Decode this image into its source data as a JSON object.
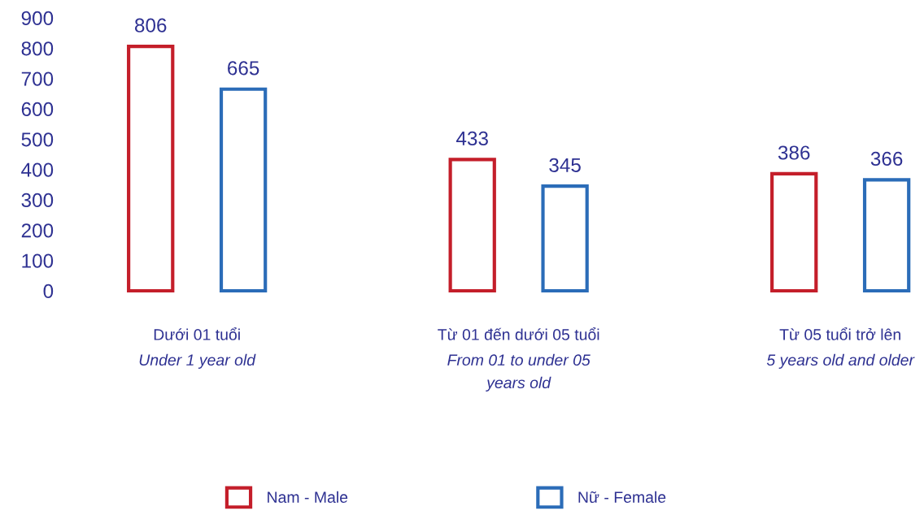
{
  "chart_data": {
    "type": "bar",
    "categories": [
      "Dưới 01 tuổi\nUnder 1 year old",
      "Từ 01 đến dưới 05 tuổi\nFrom 01 to under 05\nyears old",
      "Từ 05 tuổi trở lên\n5 years old and older"
    ],
    "series": [
      {
        "name": "Nam - Male",
        "color": "#c41e2a",
        "values": [
          806,
          433,
          386
        ]
      },
      {
        "name": "Nữ - Female",
        "color": "#2b6cb8",
        "values": [
          665,
          345,
          366
        ]
      }
    ],
    "ylim": [
      0,
      900
    ],
    "yticks": [
      0,
      100,
      200,
      300,
      400,
      500,
      600,
      700,
      800,
      900
    ],
    "grid": false,
    "legend": "bottom",
    "data_labels": true
  }
}
